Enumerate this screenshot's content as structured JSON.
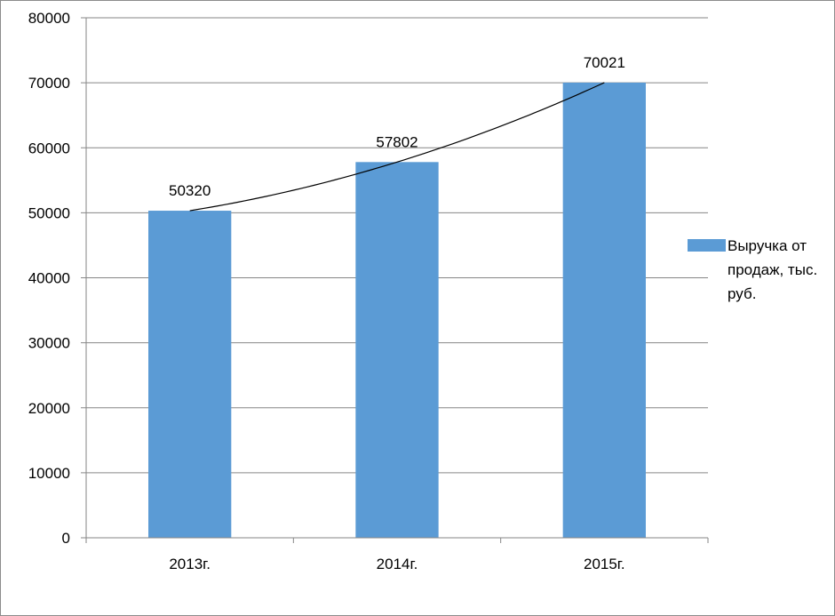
{
  "chart_data": {
    "type": "bar",
    "categories": [
      "2013г.",
      "2014г.",
      "2015г."
    ],
    "series": [
      {
        "name": "Выручка от продаж, тыс. руб.",
        "values": [
          50320,
          57802,
          70021
        ],
        "color": "#5b9bd5"
      }
    ],
    "data_labels": [
      "50320",
      "57802",
      "70021"
    ],
    "y_ticks": [
      0,
      10000,
      20000,
      30000,
      40000,
      50000,
      60000,
      70000,
      80000
    ],
    "ylim": [
      0,
      80000
    ],
    "trendline": {
      "type": "polynomial",
      "color": "#000000"
    },
    "grid": true,
    "legend_position": "right",
    "title": "",
    "xlabel": "",
    "ylabel": ""
  }
}
